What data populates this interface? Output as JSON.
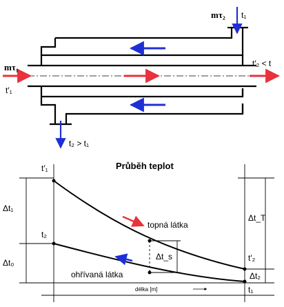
{
  "exchanger": {
    "hot_inlet_label": "mτ₁",
    "hot_inlet_temp": "t′₁",
    "cold_inlet_label": "mτ₂",
    "cold_inlet_temp": "t₁",
    "hot_outlet_label": "t′₂ < t",
    "cold_outlet_label": "t₂ > t₁",
    "hot_color": "#e8323c",
    "cold_color": "#1f2fd6"
  },
  "profile": {
    "title": "Průběh teplot",
    "label_t1_prime": "t′₁",
    "label_t2": "t₂",
    "label_t2_prime": "t′₂",
    "label_t1": "t₁",
    "label_dt1": "Δt₁",
    "label_dt0": "Δt₀",
    "label_dts": "Δt_s",
    "label_dtT": "Δt_T",
    "label_dt2": "Δt₂",
    "hot_fluid": "topná látka",
    "cold_fluid": "ohřívaná látka",
    "x_axis": "délka [m]"
  }
}
